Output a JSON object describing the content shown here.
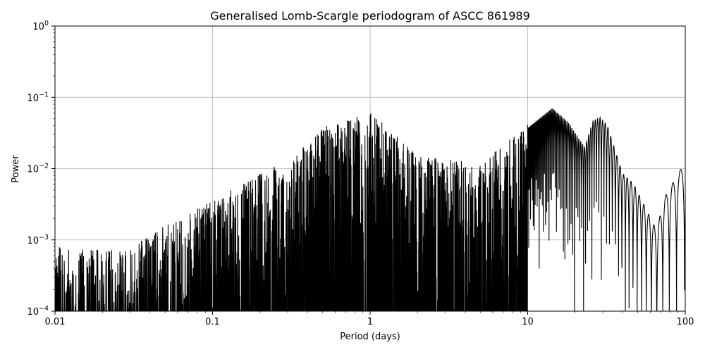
{
  "chart_data": {
    "type": "line",
    "title": "Generalised Lomb-Scargle periodogram of ASCC 861989",
    "xlabel": "Period (days)",
    "ylabel": "Power",
    "xscale": "log",
    "yscale": "log",
    "xlim": [
      0.01,
      100
    ],
    "ylim": [
      0.0001,
      1
    ],
    "grid": true,
    "line_color": "#000000",
    "grid_color": "#b0b0b0",
    "x_ticks": [
      {
        "value": 0.01,
        "label": "0.01"
      },
      {
        "value": 0.1,
        "label": "0.1"
      },
      {
        "value": 1,
        "label": "1"
      },
      {
        "value": 10,
        "label": "10"
      },
      {
        "value": 100,
        "label": "100"
      }
    ],
    "y_ticks": [
      {
        "value": 0.0001,
        "base": "10",
        "exp": "−4"
      },
      {
        "value": 0.001,
        "base": "10",
        "exp": "−3"
      },
      {
        "value": 0.01,
        "base": "10",
        "exp": "−2"
      },
      {
        "value": 0.1,
        "base": "10",
        "exp": "−1"
      },
      {
        "value": 1,
        "base": "10",
        "exp": "0"
      }
    ],
    "peaks": [
      {
        "period": 0.0101,
        "power": 0.0008
      },
      {
        "period": 0.028,
        "power": 0.0007
      },
      {
        "period": 0.05,
        "power": 0.0016
      },
      {
        "period": 0.1,
        "power": 0.0035
      },
      {
        "period": 0.15,
        "power": 0.006
      },
      {
        "period": 0.33,
        "power": 0.015
      },
      {
        "period": 0.5,
        "power": 0.038
      },
      {
        "period": 0.95,
        "power": 0.06
      },
      {
        "period": 1.02,
        "power": 0.063
      },
      {
        "period": 2.0,
        "power": 0.015
      },
      {
        "period": 5.0,
        "power": 0.012
      },
      {
        "period": 14.3,
        "power": 0.078
      },
      {
        "period": 18.0,
        "power": 0.05
      },
      {
        "period": 23.0,
        "power": 0.022
      },
      {
        "period": 26.0,
        "power": 0.052
      },
      {
        "period": 28.8,
        "power": 0.058
      },
      {
        "period": 32.0,
        "power": 0.045
      },
      {
        "period": 40.0,
        "power": 0.0095
      },
      {
        "period": 47.0,
        "power": 0.0068
      },
      {
        "period": 66.0,
        "power": 0.0015
      },
      {
        "period": 73.0,
        "power": 0.0042
      },
      {
        "period": 97.0,
        "power": 0.0125
      }
    ]
  }
}
